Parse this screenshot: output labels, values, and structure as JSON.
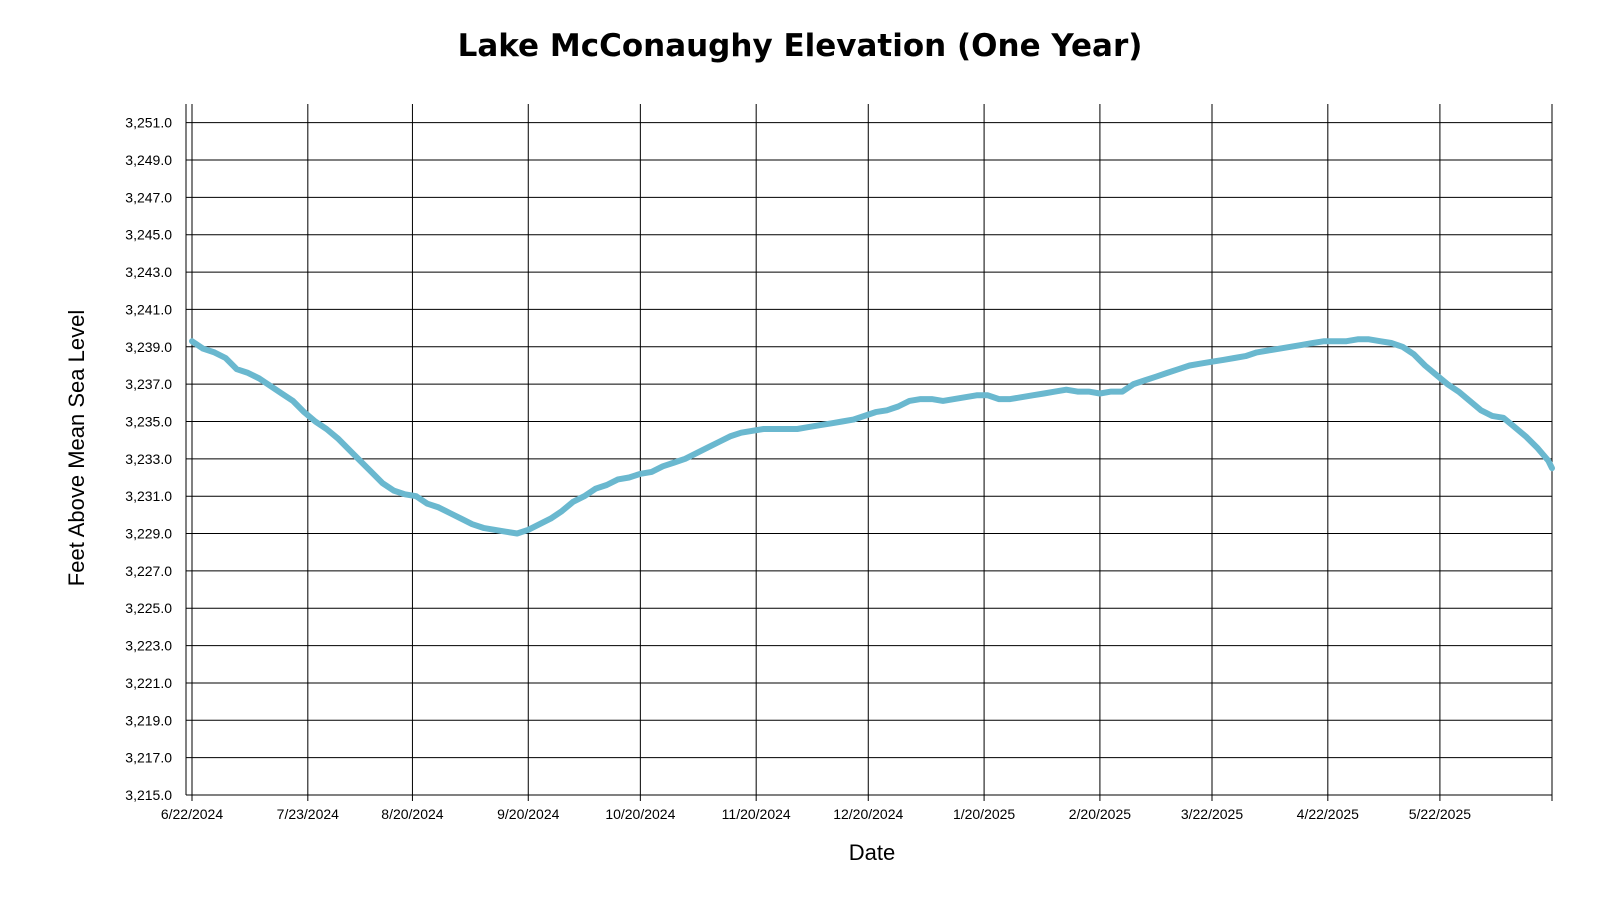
{
  "chart_data": {
    "type": "line",
    "title": "Lake McConaughy Elevation (One Year)",
    "xlabel": "Date",
    "ylabel": "Feet Above Mean Sea Level",
    "grid": true,
    "legend": "none",
    "series_color": "#6ab8cf",
    "ylim": [
      3215.0,
      3252.0
    ],
    "xlim": [
      "2024-06-22",
      "2025-06-21"
    ],
    "y_ticks": [
      {
        "value": 3215.0,
        "label": "3,215.0"
      },
      {
        "value": 3217.0,
        "label": "3,217.0"
      },
      {
        "value": 3219.0,
        "label": "3,219.0"
      },
      {
        "value": 3221.0,
        "label": "3,221.0"
      },
      {
        "value": 3223.0,
        "label": "3,223.0"
      },
      {
        "value": 3225.0,
        "label": "3,225.0"
      },
      {
        "value": 3227.0,
        "label": "3,227.0"
      },
      {
        "value": 3229.0,
        "label": "3,229.0"
      },
      {
        "value": 3231.0,
        "label": "3,231.0"
      },
      {
        "value": 3233.0,
        "label": "3,233.0"
      },
      {
        "value": 3235.0,
        "label": "3,235.0"
      },
      {
        "value": 3237.0,
        "label": "3,237.0"
      },
      {
        "value": 3239.0,
        "label": "3,239.0"
      },
      {
        "value": 3241.0,
        "label": "3,241.0"
      },
      {
        "value": 3243.0,
        "label": "3,243.0"
      },
      {
        "value": 3245.0,
        "label": "3,245.0"
      },
      {
        "value": 3247.0,
        "label": "3,247.0"
      },
      {
        "value": 3249.0,
        "label": "3,249.0"
      },
      {
        "value": 3251.0,
        "label": "3,251.0"
      }
    ],
    "x_ticks": [
      {
        "value": "2024-06-22",
        "label": "6/22/2024"
      },
      {
        "value": "2024-07-23",
        "label": "7/23/2024"
      },
      {
        "value": "2024-08-20",
        "label": "8/20/2024"
      },
      {
        "value": "2024-09-20",
        "label": "9/20/2024"
      },
      {
        "value": "2024-10-20",
        "label": "10/20/2024"
      },
      {
        "value": "2024-11-20",
        "label": "11/20/2024"
      },
      {
        "value": "2024-12-20",
        "label": "12/20/2024"
      },
      {
        "value": "2025-01-20",
        "label": "1/20/2025"
      },
      {
        "value": "2025-02-20",
        "label": "2/20/2025"
      },
      {
        "value": "2025-03-22",
        "label": "3/22/2025"
      },
      {
        "value": "2025-04-22",
        "label": "4/22/2025"
      },
      {
        "value": "2025-05-22",
        "label": "5/22/2025"
      }
    ],
    "series": [
      {
        "points": [
          [
            "2024-06-22",
            3239.3
          ],
          [
            "2024-06-25",
            3238.9
          ],
          [
            "2024-06-28",
            3238.7
          ],
          [
            "2024-07-01",
            3238.4
          ],
          [
            "2024-07-04",
            3237.8
          ],
          [
            "2024-07-07",
            3237.6
          ],
          [
            "2024-07-10",
            3237.3
          ],
          [
            "2024-07-13",
            3236.9
          ],
          [
            "2024-07-16",
            3236.5
          ],
          [
            "2024-07-19",
            3236.1
          ],
          [
            "2024-07-22",
            3235.5
          ],
          [
            "2024-07-25",
            3235.0
          ],
          [
            "2024-07-28",
            3234.6
          ],
          [
            "2024-07-31",
            3234.1
          ],
          [
            "2024-08-03",
            3233.5
          ],
          [
            "2024-08-06",
            3232.9
          ],
          [
            "2024-08-09",
            3232.3
          ],
          [
            "2024-08-12",
            3231.7
          ],
          [
            "2024-08-15",
            3231.3
          ],
          [
            "2024-08-18",
            3231.1
          ],
          [
            "2024-08-21",
            3231.0
          ],
          [
            "2024-08-24",
            3230.6
          ],
          [
            "2024-08-27",
            3230.4
          ],
          [
            "2024-08-30",
            3230.1
          ],
          [
            "2024-09-02",
            3229.8
          ],
          [
            "2024-09-05",
            3229.5
          ],
          [
            "2024-09-08",
            3229.3
          ],
          [
            "2024-09-11",
            3229.2
          ],
          [
            "2024-09-14",
            3229.1
          ],
          [
            "2024-09-17",
            3229.0
          ],
          [
            "2024-09-20",
            3229.2
          ],
          [
            "2024-09-23",
            3229.5
          ],
          [
            "2024-09-26",
            3229.8
          ],
          [
            "2024-09-29",
            3230.2
          ],
          [
            "2024-10-02",
            3230.7
          ],
          [
            "2024-10-05",
            3231.0
          ],
          [
            "2024-10-08",
            3231.4
          ],
          [
            "2024-10-11",
            3231.6
          ],
          [
            "2024-10-14",
            3231.9
          ],
          [
            "2024-10-17",
            3232.0
          ],
          [
            "2024-10-20",
            3232.2
          ],
          [
            "2024-10-23",
            3232.3
          ],
          [
            "2024-10-26",
            3232.6
          ],
          [
            "2024-10-29",
            3232.8
          ],
          [
            "2024-11-01",
            3233.0
          ],
          [
            "2024-11-04",
            3233.3
          ],
          [
            "2024-11-07",
            3233.6
          ],
          [
            "2024-11-10",
            3233.9
          ],
          [
            "2024-11-13",
            3234.2
          ],
          [
            "2024-11-16",
            3234.4
          ],
          [
            "2024-11-19",
            3234.5
          ],
          [
            "2024-11-22",
            3234.6
          ],
          [
            "2024-11-25",
            3234.6
          ],
          [
            "2024-11-28",
            3234.6
          ],
          [
            "2024-12-01",
            3234.6
          ],
          [
            "2024-12-04",
            3234.7
          ],
          [
            "2024-12-07",
            3234.8
          ],
          [
            "2024-12-10",
            3234.9
          ],
          [
            "2024-12-13",
            3235.0
          ],
          [
            "2024-12-16",
            3235.1
          ],
          [
            "2024-12-19",
            3235.3
          ],
          [
            "2024-12-22",
            3235.5
          ],
          [
            "2024-12-25",
            3235.6
          ],
          [
            "2024-12-28",
            3235.8
          ],
          [
            "2024-12-31",
            3236.1
          ],
          [
            "2025-01-03",
            3236.2
          ],
          [
            "2025-01-06",
            3236.2
          ],
          [
            "2025-01-09",
            3236.1
          ],
          [
            "2025-01-12",
            3236.2
          ],
          [
            "2025-01-15",
            3236.3
          ],
          [
            "2025-01-18",
            3236.4
          ],
          [
            "2025-01-21",
            3236.4
          ],
          [
            "2025-01-24",
            3236.2
          ],
          [
            "2025-01-27",
            3236.2
          ],
          [
            "2025-01-30",
            3236.3
          ],
          [
            "2025-02-02",
            3236.4
          ],
          [
            "2025-02-05",
            3236.5
          ],
          [
            "2025-02-08",
            3236.6
          ],
          [
            "2025-02-11",
            3236.7
          ],
          [
            "2025-02-14",
            3236.6
          ],
          [
            "2025-02-17",
            3236.6
          ],
          [
            "2025-02-20",
            3236.5
          ],
          [
            "2025-02-23",
            3236.6
          ],
          [
            "2025-02-26",
            3236.6
          ],
          [
            "2025-03-01",
            3237.0
          ],
          [
            "2025-03-04",
            3237.2
          ],
          [
            "2025-03-07",
            3237.4
          ],
          [
            "2025-03-10",
            3237.6
          ],
          [
            "2025-03-13",
            3237.8
          ],
          [
            "2025-03-16",
            3238.0
          ],
          [
            "2025-03-19",
            3238.1
          ],
          [
            "2025-03-22",
            3238.2
          ],
          [
            "2025-03-25",
            3238.3
          ],
          [
            "2025-03-28",
            3238.4
          ],
          [
            "2025-03-31",
            3238.5
          ],
          [
            "2025-04-03",
            3238.7
          ],
          [
            "2025-04-06",
            3238.8
          ],
          [
            "2025-04-09",
            3238.9
          ],
          [
            "2025-04-12",
            3239.0
          ],
          [
            "2025-04-15",
            3239.1
          ],
          [
            "2025-04-18",
            3239.2
          ],
          [
            "2025-04-21",
            3239.3
          ],
          [
            "2025-04-24",
            3239.3
          ],
          [
            "2025-04-27",
            3239.3
          ],
          [
            "2025-04-30",
            3239.4
          ],
          [
            "2025-05-03",
            3239.4
          ],
          [
            "2025-05-06",
            3239.3
          ],
          [
            "2025-05-09",
            3239.2
          ],
          [
            "2025-05-12",
            3239.0
          ],
          [
            "2025-05-15",
            3238.6
          ],
          [
            "2025-05-18",
            3238.0
          ],
          [
            "2025-05-21",
            3237.5
          ],
          [
            "2025-05-24",
            3237.0
          ],
          [
            "2025-05-27",
            3236.6
          ],
          [
            "2025-05-30",
            3236.1
          ],
          [
            "2025-06-02",
            3235.6
          ],
          [
            "2025-06-05",
            3235.3
          ],
          [
            "2025-06-08",
            3235.2
          ],
          [
            "2025-06-11",
            3234.7
          ],
          [
            "2025-06-14",
            3234.2
          ],
          [
            "2025-06-17",
            3233.6
          ],
          [
            "2025-06-20",
            3232.9
          ],
          [
            "2025-06-21",
            3232.5
          ]
        ]
      }
    ]
  }
}
